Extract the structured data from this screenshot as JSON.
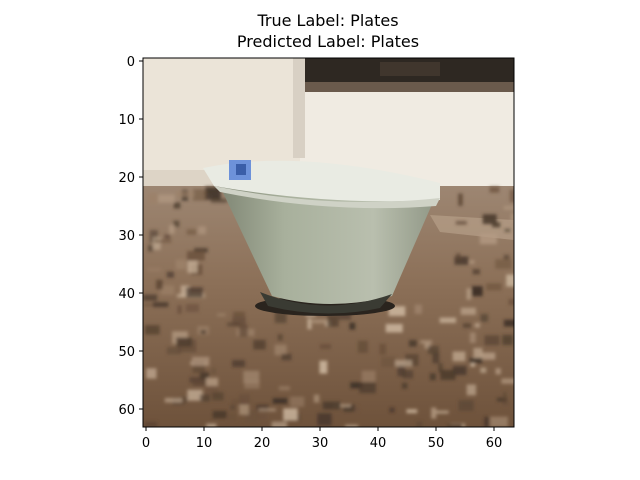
{
  "figure": {
    "title_line1": "True Label: Plates",
    "title_line2": "Predicted Label: Plates"
  },
  "axes": {
    "x_ticks": [
      "0",
      "10",
      "20",
      "30",
      "40",
      "50",
      "60"
    ],
    "y_ticks": [
      "0",
      "10",
      "20",
      "30",
      "40",
      "50",
      "60"
    ]
  },
  "image": {
    "description": "low-resolution 64x64 photo of a white bowl on a granite countertop"
  },
  "colors": {
    "wall": "#ece6dc",
    "wall_shadow": "#d9d1c5",
    "window_dark": "#2f2a24",
    "window_frame": "#7a6a5c",
    "bowl_rim": "#eef0e9",
    "bowl_body": "#9ea692",
    "bowl_shadow": "#4e5448",
    "bowl_inner": "#cfd3c6",
    "counter_light": "#b39a82",
    "counter_mid": "#8a6e55",
    "counter_dark": "#4a3a2c",
    "blue_mark": "#5a86d8"
  }
}
